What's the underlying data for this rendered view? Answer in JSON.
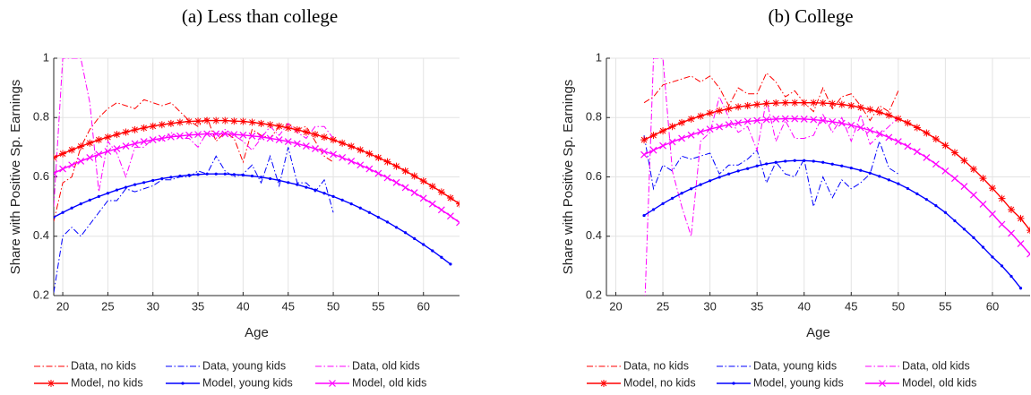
{
  "chart_data": [
    {
      "type": "line",
      "title": "(a) Less than college",
      "xlabel": "Age",
      "ylabel": "Share with Positive Sp. Earnings",
      "x": [
        19,
        20,
        21,
        22,
        23,
        24,
        25,
        26,
        27,
        28,
        29,
        30,
        31,
        32,
        33,
        34,
        35,
        36,
        37,
        38,
        39,
        40,
        41,
        42,
        43,
        44,
        45,
        46,
        47,
        48,
        49,
        50,
        51,
        52,
        53,
        54,
        55,
        56,
        57,
        58,
        59,
        60,
        61,
        62,
        63,
        64
      ],
      "xlim": [
        19,
        64
      ],
      "ylim": [
        0.2,
        1
      ],
      "xticks": [
        20,
        25,
        30,
        35,
        40,
        45,
        50,
        55,
        60
      ],
      "yticks": [
        0.2,
        0.4,
        0.6,
        0.8,
        1
      ],
      "grid": true,
      "series": [
        {
          "name": "Data, no kids",
          "color": "#ff0000",
          "line_style": "dash-dot",
          "values": [
            0.45,
            0.58,
            0.6,
            0.7,
            0.76,
            0.8,
            0.83,
            0.85,
            0.84,
            0.83,
            0.86,
            0.85,
            0.84,
            0.85,
            0.82,
            0.79,
            0.77,
            0.8,
            0.72,
            0.75,
            0.73,
            0.65,
            0.76,
            0.74,
            0.73,
            0.77,
            0.78,
            0.76,
            0.77,
            0.72,
            0.67,
            0.65,
            null,
            null,
            null,
            null,
            null,
            null,
            null,
            null,
            null,
            null,
            null,
            null,
            null,
            null
          ]
        },
        {
          "name": "Data, young kids",
          "color": "#0000ff",
          "line_style": "dash-dot",
          "values": [
            0.21,
            0.4,
            0.43,
            0.4,
            0.44,
            0.48,
            0.52,
            0.52,
            0.56,
            0.55,
            0.56,
            0.57,
            0.59,
            0.59,
            0.6,
            0.6,
            0.62,
            0.61,
            0.67,
            0.62,
            0.6,
            0.61,
            0.64,
            0.58,
            0.67,
            0.57,
            0.7,
            0.58,
            0.58,
            0.55,
            0.59,
            0.48,
            null,
            null,
            null,
            null,
            null,
            null,
            null,
            null,
            null,
            null,
            null,
            null,
            null,
            null
          ]
        },
        {
          "name": "Data, old kids",
          "color": "#ff00ff",
          "line_style": "dash-dot",
          "values": [
            0.5,
            1,
            1,
            1,
            0.85,
            0.55,
            0.72,
            0.68,
            0.6,
            0.7,
            0.7,
            0.73,
            0.72,
            0.75,
            0.73,
            0.73,
            0.7,
            0.75,
            0.73,
            0.76,
            0.74,
            0.72,
            0.69,
            0.73,
            0.77,
            0.74,
            0.78,
            0.75,
            0.73,
            0.77,
            0.77,
            0.73,
            null,
            null,
            null,
            null,
            null,
            null,
            null,
            null,
            null,
            null,
            null,
            null,
            null,
            null
          ]
        },
        {
          "name": "Model, no kids",
          "color": "#ff0000",
          "line_style": "solid",
          "marker": "asterisk",
          "values": [
            0.665,
            0.678,
            0.691,
            0.703,
            0.714,
            0.725,
            0.734,
            0.743,
            0.751,
            0.759,
            0.765,
            0.771,
            0.776,
            0.78,
            0.784,
            0.787,
            0.788,
            0.79,
            0.79,
            0.79,
            0.788,
            0.787,
            0.784,
            0.78,
            0.776,
            0.771,
            0.765,
            0.759,
            0.751,
            0.743,
            0.734,
            0.725,
            0.714,
            0.703,
            0.691,
            0.678,
            0.665,
            0.651,
            0.636,
            0.62,
            0.603,
            0.586,
            0.568,
            0.549,
            0.529,
            0.509
          ]
        },
        {
          "name": "Model, young kids",
          "color": "#0000ff",
          "line_style": "solid",
          "marker": "dot",
          "values": [
            0.464,
            0.48,
            0.495,
            0.509,
            0.522,
            0.534,
            0.545,
            0.556,
            0.565,
            0.574,
            0.581,
            0.588,
            0.594,
            0.599,
            0.603,
            0.606,
            0.608,
            0.61,
            0.61,
            0.61,
            0.608,
            0.606,
            0.603,
            0.599,
            0.594,
            0.588,
            0.581,
            0.574,
            0.565,
            0.556,
            0.545,
            0.534,
            0.522,
            0.509,
            0.495,
            0.48,
            0.464,
            0.448,
            0.43,
            0.412,
            0.392,
            0.372,
            0.351,
            0.329,
            0.306,
            null
          ]
        },
        {
          "name": "Model, old kids",
          "color": "#ff00ff",
          "line_style": "solid",
          "marker": "x",
          "values": [
            0.612,
            0.627,
            0.64,
            0.653,
            0.665,
            0.676,
            0.686,
            0.695,
            0.704,
            0.712,
            0.719,
            0.725,
            0.73,
            0.735,
            0.738,
            0.741,
            0.743,
            0.745,
            0.745,
            0.745,
            0.743,
            0.741,
            0.738,
            0.735,
            0.73,
            0.725,
            0.719,
            0.712,
            0.704,
            0.695,
            0.686,
            0.676,
            0.665,
            0.653,
            0.64,
            0.627,
            0.612,
            0.597,
            0.581,
            0.564,
            0.547,
            0.528,
            0.509,
            0.489,
            0.468,
            0.446
          ]
        }
      ]
    },
    {
      "type": "line",
      "title": "(b) College",
      "xlabel": "Age",
      "ylabel": "Share with Positive Sp. Earnings",
      "x": [
        23,
        24,
        25,
        26,
        27,
        28,
        29,
        30,
        31,
        32,
        33,
        34,
        35,
        36,
        37,
        38,
        39,
        40,
        41,
        42,
        43,
        44,
        45,
        46,
        47,
        48,
        49,
        50,
        51,
        52,
        53,
        54,
        55,
        56,
        57,
        58,
        59,
        60,
        61,
        62,
        63,
        64
      ],
      "xlim": [
        19,
        64
      ],
      "ylim": [
        0.2,
        1
      ],
      "xticks": [
        20,
        25,
        30,
        35,
        40,
        45,
        50,
        55,
        60
      ],
      "yticks": [
        0.2,
        0.4,
        0.6,
        0.8,
        1
      ],
      "grid": true,
      "series": [
        {
          "name": "Data, no kids",
          "color": "#ff0000",
          "line_style": "dash-dot",
          "values": [
            0.85,
            0.87,
            0.91,
            0.92,
            0.93,
            0.94,
            0.92,
            0.94,
            0.9,
            0.84,
            0.9,
            0.88,
            0.88,
            0.95,
            0.92,
            0.87,
            0.89,
            0.85,
            0.82,
            0.9,
            0.83,
            0.87,
            0.88,
            0.84,
            0.79,
            0.84,
            0.82,
            0.89,
            null,
            null,
            null,
            null,
            null,
            null,
            null,
            null,
            null,
            null,
            null,
            null,
            null,
            null
          ]
        },
        {
          "name": "Data, young kids",
          "color": "#0000ff",
          "line_style": "dash-dot",
          "values": [
            0.74,
            0.56,
            0.64,
            0.62,
            0.67,
            0.66,
            0.67,
            0.68,
            0.61,
            0.64,
            0.64,
            0.66,
            0.69,
            0.58,
            0.65,
            0.61,
            0.6,
            0.66,
            0.5,
            0.6,
            0.53,
            0.59,
            0.56,
            0.58,
            0.61,
            0.72,
            0.63,
            0.61,
            null,
            null,
            null,
            null,
            null,
            null,
            null,
            null,
            null,
            null,
            null,
            null,
            null,
            null
          ]
        },
        {
          "name": "Data, old kids",
          "color": "#ff00ff",
          "line_style": "dash-dot",
          "values": [
            0.1,
            1,
            1,
            0.62,
            0.5,
            0.4,
            0.72,
            0.75,
            0.87,
            0.8,
            0.75,
            0.77,
            0.69,
            0.86,
            0.72,
            0.79,
            0.73,
            0.73,
            0.74,
            0.81,
            0.75,
            0.8,
            0.72,
            0.81,
            0.71,
            0.74,
            0.77,
            0.8,
            null,
            null,
            null,
            null,
            null,
            null,
            null,
            null,
            null,
            null,
            null,
            null,
            null,
            null
          ]
        },
        {
          "name": "Model, no kids",
          "color": "#ff0000",
          "line_style": "solid",
          "marker": "asterisk",
          "values": [
            0.725,
            0.74,
            0.755,
            0.77,
            0.783,
            0.795,
            0.805,
            0.815,
            0.823,
            0.83,
            0.836,
            0.84,
            0.844,
            0.847,
            0.849,
            0.85,
            0.85,
            0.85,
            0.85,
            0.849,
            0.847,
            0.844,
            0.84,
            0.834,
            0.827,
            0.818,
            0.808,
            0.796,
            0.782,
            0.766,
            0.748,
            0.728,
            0.706,
            0.682,
            0.655,
            0.626,
            0.595,
            0.562,
            0.527,
            0.49,
            0.46,
            0.42
          ]
        },
        {
          "name": "Model, young kids",
          "color": "#0000ff",
          "line_style": "solid",
          "marker": "dot",
          "values": [
            0.47,
            0.49,
            0.51,
            0.528,
            0.545,
            0.56,
            0.574,
            0.587,
            0.599,
            0.61,
            0.62,
            0.628,
            0.637,
            0.644,
            0.649,
            0.653,
            0.655,
            0.655,
            0.653,
            0.649,
            0.643,
            0.637,
            0.63,
            0.622,
            0.613,
            0.602,
            0.59,
            0.577,
            0.561,
            0.543,
            0.524,
            0.503,
            0.48,
            0.452,
            0.424,
            0.395,
            0.363,
            0.33,
            0.3,
            0.265,
            0.225,
            null
          ]
        },
        {
          "name": "Model, old kids",
          "color": "#ff00ff",
          "line_style": "solid",
          "marker": "x",
          "values": [
            0.675,
            0.69,
            0.705,
            0.718,
            0.73,
            0.741,
            0.752,
            0.761,
            0.769,
            0.776,
            0.782,
            0.787,
            0.79,
            0.793,
            0.795,
            0.796,
            0.796,
            0.795,
            0.793,
            0.79,
            0.786,
            0.781,
            0.774,
            0.766,
            0.757,
            0.746,
            0.733,
            0.719,
            0.703,
            0.685,
            0.665,
            0.643,
            0.62,
            0.595,
            0.568,
            0.539,
            0.508,
            0.475,
            0.44,
            0.41,
            0.375,
            0.34
          ]
        }
      ]
    }
  ]
}
